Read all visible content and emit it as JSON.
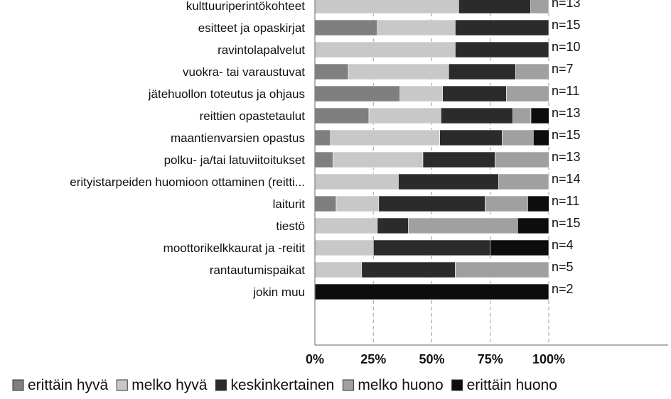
{
  "colors": {
    "erittain_hyva": "#7f7f7f",
    "melko_hyva": "#c8c8c8",
    "keskinkertainen": "#2b2b2b",
    "melko_huono": "#a0a0a0",
    "erittain_huono": "#0d0d0d",
    "grid": "#9a9a9a",
    "axis": "#808080"
  },
  "chart_data": {
    "type": "bar",
    "orientation": "horizontal",
    "stacked": true,
    "percent": true,
    "categories": [
      "kulttuuriperintökohteet",
      "esitteet ja opaskirjat",
      "ravintolapalvelut",
      "vuokra- tai varaustuvat",
      "jätehuollon toteutus ja ohjaus",
      "reittien opastetaulut",
      "maantienvarsien opastus",
      "polku- ja/tai latuviitoitukset",
      "erityistarpeiden huomioon ottaminen (reitti...",
      "laiturit",
      "tiestö",
      "moottorikelkkaurat ja -reitit",
      "rantautumispaikat",
      "jokin muu"
    ],
    "n_labels": [
      "n=13",
      "n=15",
      "n=10",
      "n=7",
      "n=11",
      "n=13",
      "n=15",
      "n=13",
      "n=14",
      "n=11",
      "n=15",
      "n=4",
      "n=5",
      "n=2"
    ],
    "series": [
      {
        "name": "erittäin hyvä",
        "color_key": "erittain_hyva",
        "values": [
          0,
          26.7,
          0,
          14.3,
          36.4,
          23.1,
          6.7,
          7.7,
          0,
          9.1,
          0,
          0,
          0,
          0
        ]
      },
      {
        "name": "melko hyvä",
        "color_key": "melko_hyva",
        "values": [
          61.5,
          33.3,
          60,
          42.9,
          18.2,
          30.8,
          46.7,
          38.5,
          35.7,
          18.2,
          26.7,
          25,
          20,
          0
        ]
      },
      {
        "name": "keskinkertainen",
        "color_key": "keskinkertainen",
        "values": [
          30.8,
          40,
          40,
          28.6,
          27.3,
          30.8,
          26.7,
          30.8,
          42.9,
          45.5,
          13.3,
          50,
          40,
          0
        ]
      },
      {
        "name": "melko huono",
        "color_key": "melko_huono",
        "values": [
          7.7,
          0,
          0,
          14.3,
          18.2,
          7.7,
          13.3,
          23.1,
          21.4,
          18.2,
          46.7,
          0,
          40,
          0
        ]
      },
      {
        "name": "erittäin huono",
        "color_key": "erittain_huono",
        "values": [
          0,
          0,
          0,
          0,
          0,
          7.7,
          6.7,
          0,
          0,
          9.1,
          13.3,
          25,
          0,
          100
        ]
      }
    ],
    "xlim": [
      0,
      100
    ],
    "x_ticks": [
      "0%",
      "25%",
      "50%",
      "75%",
      "100%"
    ],
    "grid": true,
    "legend_position": "bottom"
  }
}
